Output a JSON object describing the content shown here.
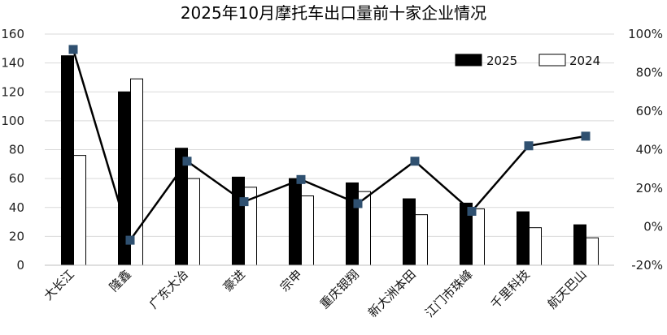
{
  "chart_data": {
    "type": "bar",
    "title": "2025年10月摩托车出口量前十家企业情况",
    "categories": [
      "大长江",
      "隆鑫",
      "广东大冶",
      "豪进",
      "宗申",
      "重庆银翔",
      "新大洲本田",
      "江门市珠峰",
      "千里科技",
      "航天巴山"
    ],
    "series": [
      {
        "name": "2025",
        "type": "bar",
        "axis": "left",
        "color": "#000000",
        "values": [
          145,
          120,
          81,
          61,
          60,
          57,
          46,
          43,
          37,
          28
        ]
      },
      {
        "name": "2024",
        "type": "bar",
        "axis": "left",
        "color": "#ffffff",
        "values": [
          76,
          129,
          60,
          54,
          48,
          51,
          35,
          39,
          26,
          19
        ]
      },
      {
        "name": "",
        "type": "line",
        "axis": "right",
        "color": "#000000",
        "marker_color": "#2f5070",
        "values": [
          0.92,
          -0.07,
          0.34,
          0.13,
          0.245,
          0.12,
          0.34,
          0.08,
          0.42,
          0.47
        ]
      }
    ],
    "y_left": {
      "lim": [
        0,
        160
      ],
      "ticks": [
        0,
        20,
        40,
        60,
        80,
        100,
        120,
        140,
        160
      ]
    },
    "y_right": {
      "lim": [
        -0.2,
        1.0
      ],
      "ticks": [
        "-20%",
        "0%",
        "20%",
        "40%",
        "60%",
        "80%",
        "100%"
      ]
    },
    "grid": true,
    "legend": {
      "position": "top-right"
    }
  }
}
